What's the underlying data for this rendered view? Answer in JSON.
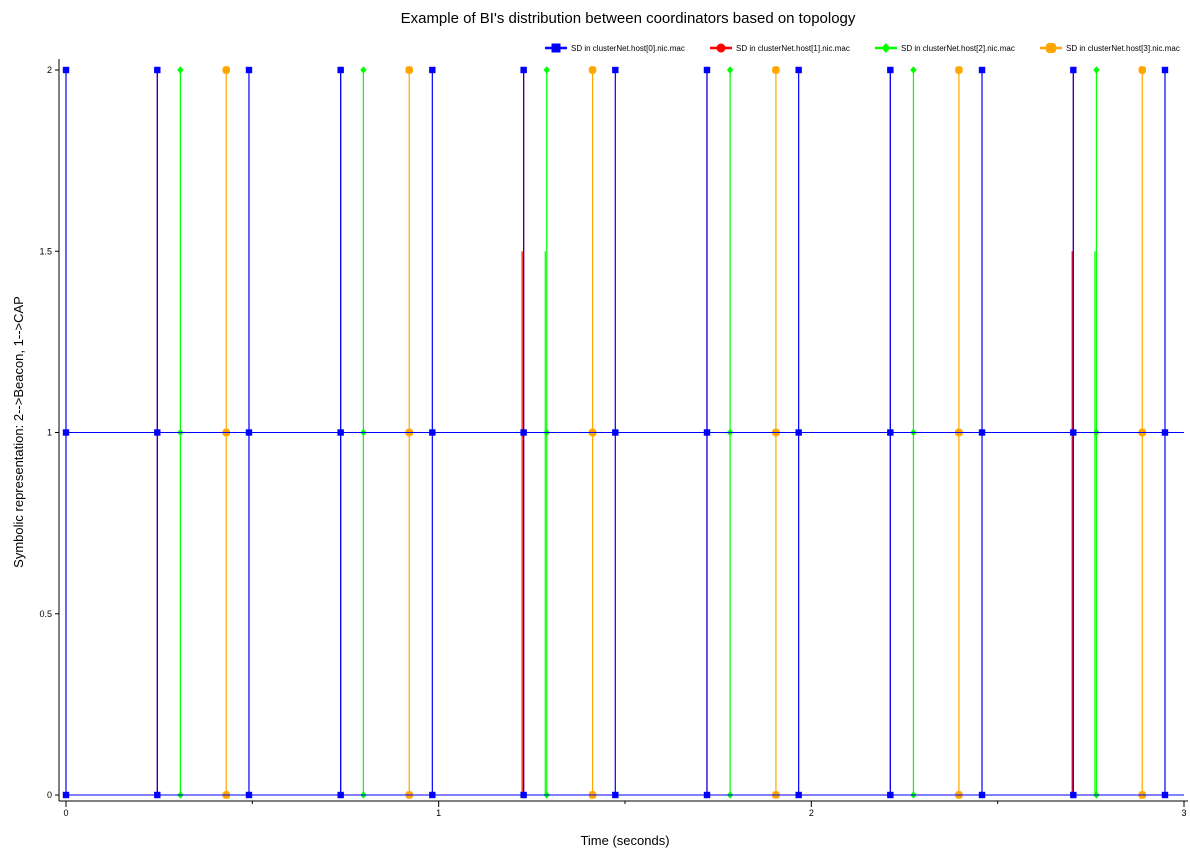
{
  "chart_data": {
    "type": "line",
    "title": "Example of BI's distribution between coordinators based on topology",
    "xlabel": "Time (seconds)",
    "ylabel": "Symbolic representation: 2-->Beacon, 1-->CAP",
    "xlim": [
      0,
      3
    ],
    "ylim": [
      0,
      2
    ],
    "xticks": [
      0,
      1,
      2,
      3
    ],
    "xtick_labels": [
      "0",
      "1",
      "2",
      "3"
    ],
    "yticks": [
      0,
      0.5,
      1,
      1.5,
      2
    ],
    "ytick_labels": [
      "0",
      "0.5",
      "1",
      "1.5",
      "2"
    ],
    "grid": false,
    "legend_position": "top-right",
    "series": [
      {
        "name": "SD in clusterNet.host[0].nic.mac",
        "color": "#0000ff",
        "marker": "square",
        "events": [
          0.0,
          0.245,
          0.491,
          0.737,
          0.983,
          1.228,
          1.474,
          1.72,
          1.966,
          2.212,
          2.458,
          2.703,
          2.949
        ],
        "partial_pulses": []
      },
      {
        "name": "SD in clusterNet.host[1].nic.mac",
        "color": "#ff0000",
        "marker": "circle",
        "events": [
          0.245,
          0.737,
          1.228,
          1.72,
          2.212,
          2.703
        ],
        "partial_pulses": [
          {
            "x": 1.224,
            "y": 1.5
          },
          {
            "x": 2.7,
            "y": 1.5
          }
        ]
      },
      {
        "name": "SD in clusterNet.host[2].nic.mac",
        "color": "#00ff00",
        "marker": "diamond",
        "events": [
          0.307,
          0.798,
          1.29,
          1.782,
          2.274,
          2.765
        ],
        "partial_pulses": [
          {
            "x": 1.286,
            "y": 1.5
          },
          {
            "x": 2.761,
            "y": 1.5
          }
        ]
      },
      {
        "name": "SD in clusterNet.host[3].nic.mac",
        "color": "#ffa500",
        "marker": "plus",
        "events": [
          0.43,
          0.921,
          1.413,
          1.905,
          2.396,
          2.888
        ],
        "partial_pulses": []
      }
    ]
  }
}
